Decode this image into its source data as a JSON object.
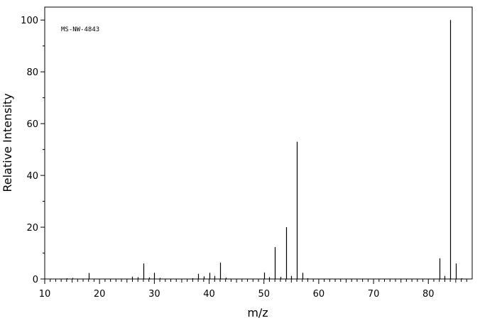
{
  "chart_data": {
    "type": "bar",
    "title": "",
    "annotation": "MS-NW-4843",
    "xlabel": "m/z",
    "ylabel": "Relative Intensity",
    "xlim": [
      10,
      88
    ],
    "ylim": [
      0,
      105
    ],
    "x_ticks": [
      10,
      20,
      30,
      40,
      50,
      60,
      70,
      80
    ],
    "y_ticks": [
      0,
      20,
      40,
      60,
      80,
      100
    ],
    "grid": false,
    "x": [
      14,
      15,
      18,
      26,
      27,
      28,
      29,
      30,
      31,
      37,
      38,
      39,
      40,
      41,
      42,
      43,
      50,
      51,
      52,
      53,
      54,
      55,
      56,
      57,
      58,
      82,
      83,
      84,
      85,
      86
    ],
    "values": [
      0.3,
      0.4,
      2.3,
      0.9,
      0.7,
      6.0,
      0.6,
      2.4,
      0.4,
      0.3,
      2.0,
      1.0,
      2.4,
      1.2,
      6.3,
      0.5,
      2.5,
      0.7,
      12.3,
      0.8,
      20.0,
      1.2,
      53.0,
      2.4,
      0.3,
      8.0,
      1.2,
      100.0,
      6.0,
      0.3
    ]
  }
}
